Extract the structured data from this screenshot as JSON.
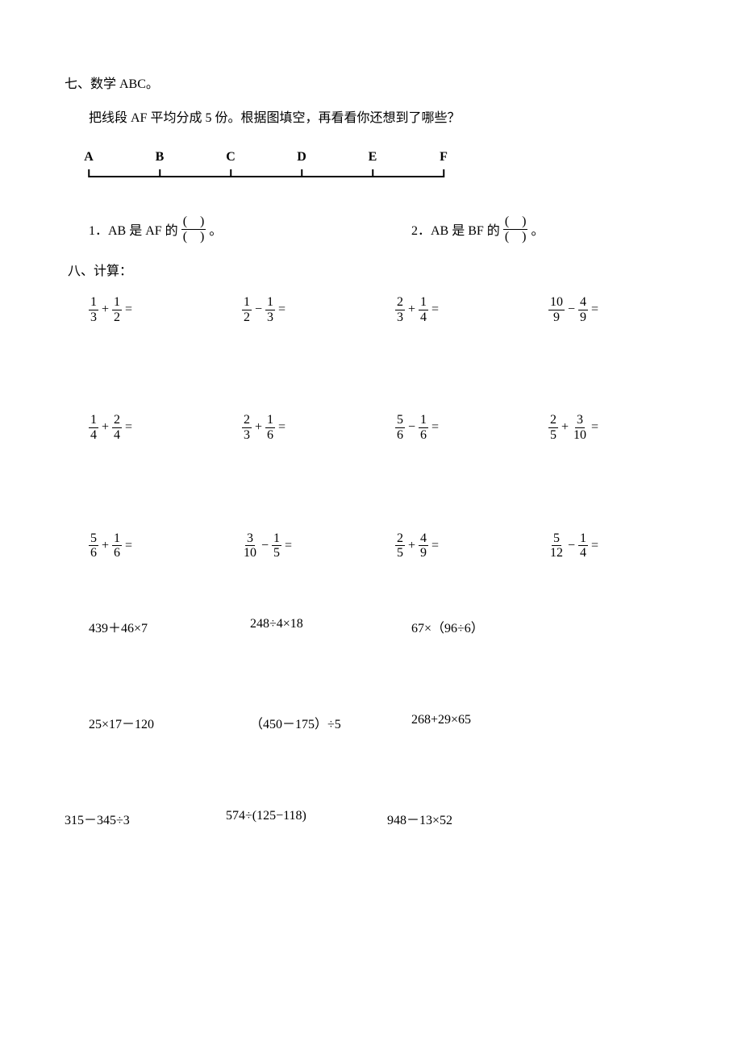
{
  "section7": {
    "title": "七、数学 ABC。",
    "instruction": "把线段 AF 平均分成 5 份。根据图填空，再看看你还想到了哪些？",
    "segment": {
      "labels": [
        "A",
        "B",
        "C",
        "D",
        "E",
        "F"
      ],
      "positions_pct": [
        0,
        20,
        40,
        60,
        80,
        100
      ]
    },
    "q1": {
      "prefix": "1．AB 是 AF 的",
      "num": "　",
      "den": "　",
      "suffix": "。"
    },
    "q2": {
      "prefix": "2．AB 是 BF 的",
      "num": "　",
      "den": "　",
      "suffix": "。"
    }
  },
  "section8": {
    "title": "八、计算：",
    "frac_rows": [
      [
        {
          "a_num": "1",
          "a_den": "3",
          "op": "+",
          "b_num": "1",
          "b_den": "2"
        },
        {
          "a_num": "1",
          "a_den": "2",
          "op": "−",
          "b_num": "1",
          "b_den": "3"
        },
        {
          "a_num": "2",
          "a_den": "3",
          "op": "+",
          "b_num": "1",
          "b_den": "4"
        },
        {
          "a_num": "10",
          "a_den": "9",
          "op": "−",
          "b_num": "4",
          "b_den": "9"
        }
      ],
      [
        {
          "a_num": "1",
          "a_den": "4",
          "op": "+",
          "b_num": "2",
          "b_den": "4"
        },
        {
          "a_num": "2",
          "a_den": "3",
          "op": "+",
          "b_num": "1",
          "b_den": "6"
        },
        {
          "a_num": "5",
          "a_den": "6",
          "op": "−",
          "b_num": "1",
          "b_den": "6"
        },
        {
          "a_num": "2",
          "a_den": "5",
          "op": "+",
          "b_num": "3",
          "b_den": "10"
        }
      ],
      [
        {
          "a_num": "5",
          "a_den": "6",
          "op": "+",
          "b_num": "1",
          "b_den": "6"
        },
        {
          "a_num": "3",
          "a_den": "10",
          "op": "−",
          "b_num": "1",
          "b_den": "5"
        },
        {
          "a_num": "2",
          "a_den": "5",
          "op": "+",
          "b_num": "4",
          "b_den": "9"
        },
        {
          "a_num": "5",
          "a_den": "12",
          "op": "−",
          "b_num": "1",
          "b_den": "4"
        }
      ]
    ],
    "arith_rows": [
      [
        "439＋46×7",
        "248÷4×18",
        "67×（96÷6）"
      ],
      [
        "25×17－120",
        "（450－175）÷5",
        "268+29×65"
      ],
      [
        "315－345÷3",
        "574÷(125−118)",
        "948－13×52"
      ]
    ]
  }
}
